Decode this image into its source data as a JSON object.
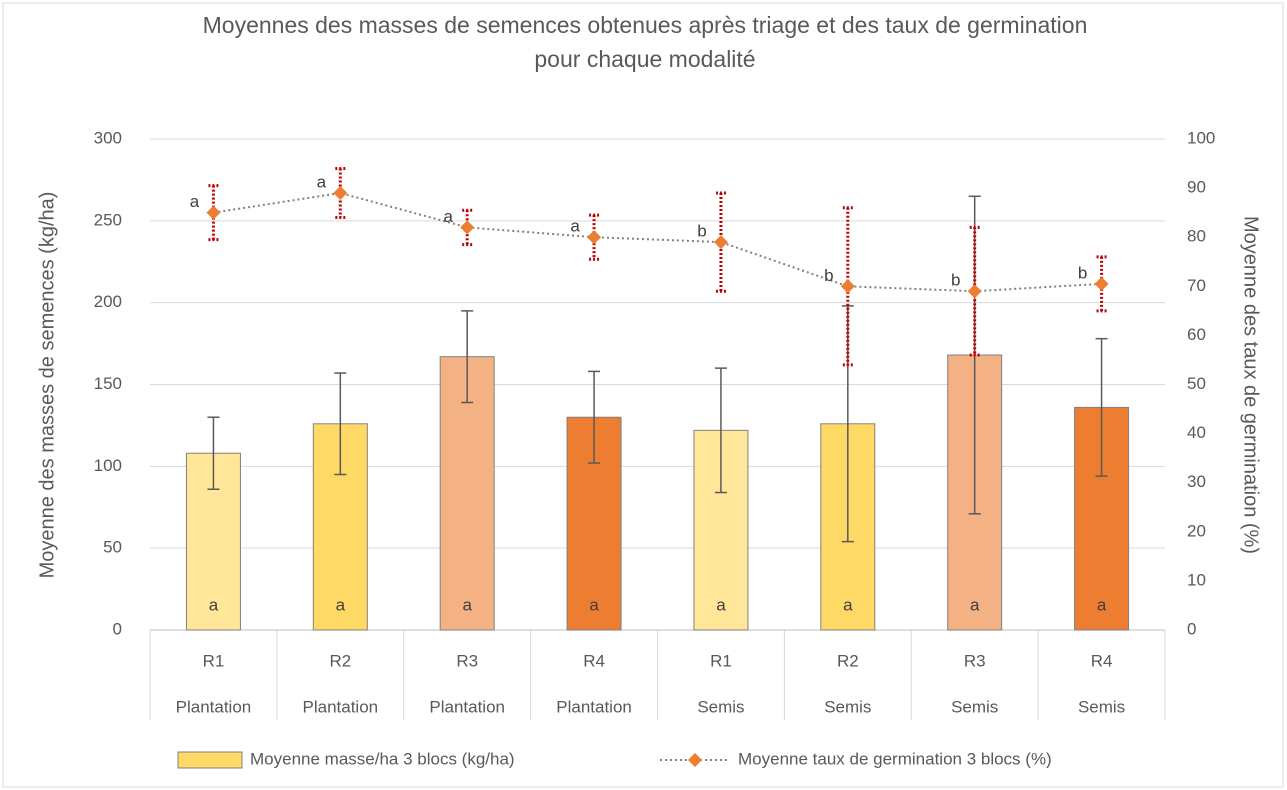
{
  "chart_data": {
    "type": "bar_line",
    "title": "Moyennes des masses de semences obtenues après triage et des taux de germination pour chaque modalité",
    "y_label": "Moyenne des masses de semences (kg/ha)",
    "y2_label": "Moyenne des taux de germination (%)",
    "categories": [
      "R1",
      "R2",
      "R3",
      "R4",
      "R1",
      "R2",
      "R3",
      "R4"
    ],
    "subcategories": [
      "Plantation",
      "Plantation",
      "Plantation",
      "Plantation",
      "Semis",
      "Semis",
      "Semis",
      "Semis"
    ],
    "ylim": [
      0,
      300
    ],
    "yticks": [
      0,
      50,
      100,
      150,
      200,
      250,
      300
    ],
    "y2lim": [
      0,
      100
    ],
    "y2ticks": [
      0,
      10,
      20,
      30,
      40,
      50,
      60,
      70,
      80,
      90,
      100
    ],
    "grid": true,
    "legend": "bottom",
    "series": [
      {
        "name": "Moyenne masse/ha 3 blocs (kg/ha)",
        "type": "bar",
        "color": "#FFD966",
        "colors": [
          "#FFE699",
          "#FFD966",
          "#F4B183",
          "#ED7D31",
          "#FFE699",
          "#FFD966",
          "#F4B183",
          "#ED7D31"
        ],
        "values": [
          108,
          126,
          167,
          130,
          122,
          126,
          168,
          136
        ],
        "errors": [
          22,
          31,
          28,
          28,
          38,
          72,
          97,
          42
        ],
        "error_color": "#595959",
        "point_labels": [
          "a",
          "a",
          "a",
          "a",
          "a",
          "a",
          "a",
          "a"
        ]
      },
      {
        "name": "Moyenne taux de germination 3 blocs (%)",
        "type": "line",
        "axis": "y2",
        "color": "#ED7D31",
        "line_color": "#808080",
        "values": [
          85,
          89,
          82,
          80,
          79,
          70,
          69,
          70.5
        ],
        "errors": [
          5.5,
          5,
          3.5,
          4.5,
          10,
          16,
          13,
          5.5
        ],
        "error_color": "#C00000",
        "point_labels": [
          "a",
          "a",
          "a",
          "a",
          "b",
          "b",
          "b",
          "b"
        ]
      }
    ]
  }
}
